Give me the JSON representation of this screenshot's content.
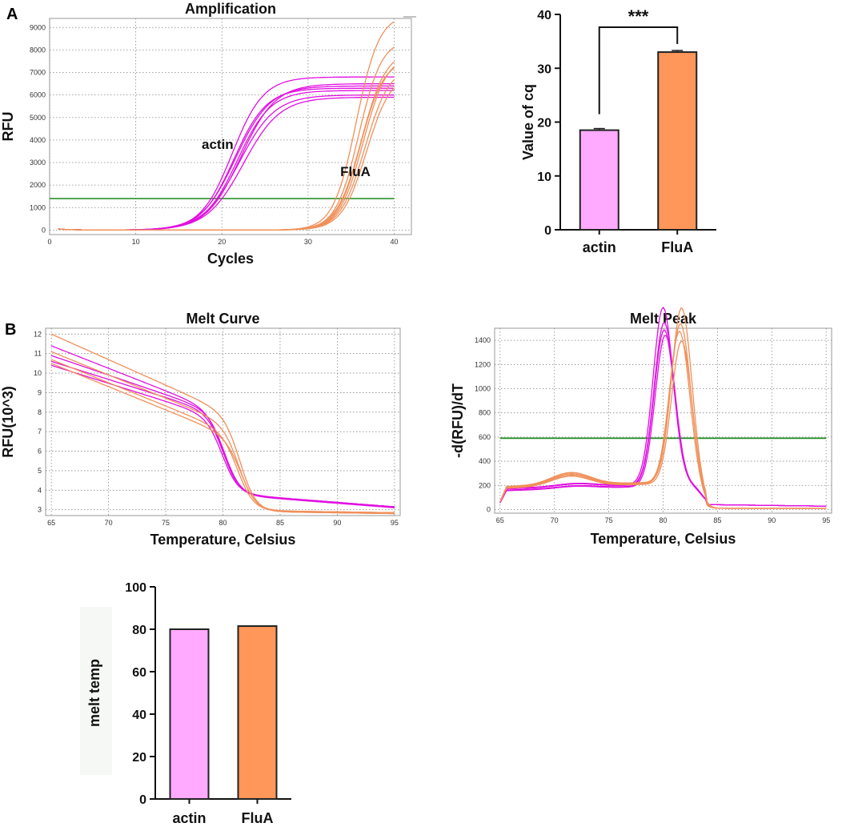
{
  "colors": {
    "actin": "#e010e0",
    "flua": "#f0905a",
    "threshold": "#1a8a1a",
    "bar_actin": "#ffaaff",
    "bar_flua": "#ff965a",
    "grid": "#888888"
  },
  "panels": {
    "a": "A",
    "b": "B"
  },
  "chart_data": [
    {
      "id": "amplification",
      "type": "line",
      "title": "Amplification",
      "xlabel": "Cycles",
      "ylabel": "RFU",
      "xlim": [
        0,
        42
      ],
      "ylim": [
        -200,
        9400
      ],
      "xticks": [
        0,
        10,
        20,
        30,
        40
      ],
      "yticks": [
        0,
        1000,
        2000,
        3000,
        4000,
        5000,
        6000,
        7000,
        8000,
        9000
      ],
      "grid": true,
      "threshold": 1400,
      "annotations": [
        {
          "text": "actin",
          "x": 19.5,
          "y": 3600
        },
        {
          "text": "FluA",
          "x": 35.5,
          "y": 2400
        }
      ],
      "series": [
        {
          "name": "actin",
          "color_key": "actin",
          "curves": [
            {
              "cq": 18.0,
              "plateau": 6800,
              "slope": 0.55
            },
            {
              "cq": 18.4,
              "plateau": 6400,
              "slope": 0.5
            },
            {
              "cq": 18.6,
              "plateau": 6200,
              "slope": 0.52
            },
            {
              "cq": 18.8,
              "plateau": 6000,
              "slope": 0.48
            },
            {
              "cq": 19.0,
              "plateau": 6500,
              "slope": 0.5
            },
            {
              "cq": 19.3,
              "plateau": 5900,
              "slope": 0.47
            },
            {
              "cq": 18.2,
              "plateau": 6300,
              "slope": 0.53
            }
          ]
        },
        {
          "name": "FluA",
          "color_key": "flua",
          "curves": [
            {
              "cq": 32.4,
              "plateau": 9600,
              "slope": 0.75
            },
            {
              "cq": 32.7,
              "plateau": 8500,
              "slope": 0.75
            },
            {
              "cq": 33.0,
              "plateau": 8000,
              "slope": 0.7
            },
            {
              "cq": 33.2,
              "plateau": 7800,
              "slope": 0.72
            },
            {
              "cq": 33.4,
              "plateau": 7300,
              "slope": 0.7
            },
            {
              "cq": 32.9,
              "plateau": 7600,
              "slope": 0.74
            },
            {
              "cq": 33.6,
              "plateau": 7000,
              "slope": 0.7
            }
          ]
        }
      ]
    },
    {
      "id": "cq",
      "type": "bar",
      "title": "",
      "categories": [
        "actin",
        "FluA"
      ],
      "values": [
        18.5,
        33.0
      ],
      "errors": [
        0.3,
        0.3
      ],
      "ylabel": "Value of cq",
      "ylim": [
        0,
        40
      ],
      "yticks": [
        0,
        10,
        20,
        30,
        40
      ],
      "annotation": "***",
      "color_keys": [
        "bar_actin",
        "bar_flua"
      ]
    },
    {
      "id": "melt-curve",
      "type": "line",
      "title": "Melt Curve",
      "xlabel": "Temperature, Celsius",
      "ylabel": "RFU(10^3)",
      "xlim": [
        64.5,
        95.5
      ],
      "ylim": [
        2.7,
        12.3
      ],
      "xticks": [
        65,
        70,
        75,
        80,
        85,
        90,
        95
      ],
      "yticks": [
        3,
        4,
        5,
        6,
        7,
        8,
        9,
        10,
        11,
        12
      ],
      "grid": true,
      "series": [
        {
          "name": "actin",
          "color_key": "actin",
          "curves": [
            {
              "a": 10.4,
              "b": 8.0,
              "tm": 80.0,
              "plateau": 3.7,
              "end": 3.15
            },
            {
              "a": 10.6,
              "b": 8.2,
              "tm": 80.1,
              "plateau": 3.7,
              "end": 3.15
            },
            {
              "a": 10.9,
              "b": 8.3,
              "tm": 80.2,
              "plateau": 3.65,
              "end": 3.1
            },
            {
              "a": 11.4,
              "b": 8.4,
              "tm": 80.1,
              "plateau": 3.65,
              "end": 3.15
            }
          ]
        },
        {
          "name": "FluA",
          "color_key": "flua",
          "curves": [
            {
              "a": 12.0,
              "b": 8.6,
              "tm": 81.6,
              "plateau": 2.9,
              "end": 2.8
            },
            {
              "a": 11.1,
              "b": 8.0,
              "tm": 81.5,
              "plateau": 2.95,
              "end": 2.85
            },
            {
              "a": 10.7,
              "b": 7.6,
              "tm": 81.4,
              "plateau": 2.95,
              "end": 2.85
            },
            {
              "a": 10.5,
              "b": 7.4,
              "tm": 81.7,
              "plateau": 2.9,
              "end": 2.8
            }
          ]
        }
      ]
    },
    {
      "id": "melt-peak",
      "type": "line",
      "title": "Melt Peak",
      "xlabel": "Temperature, Celsius",
      "ylabel": "-d(RFU)/dT",
      "xlim": [
        64.5,
        95.5
      ],
      "ylim": [
        -30,
        1500
      ],
      "xticks": [
        65,
        70,
        75,
        80,
        85,
        90,
        95
      ],
      "yticks": [
        0,
        200,
        400,
        600,
        800,
        1000,
        1200,
        1400
      ],
      "grid": true,
      "threshold": 590,
      "series": [
        {
          "name": "actin",
          "color_key": "actin",
          "curves": [
            {
              "peak": 1290,
              "tm": 80.1,
              "base": 160,
              "bump": 20,
              "bumpx": 72
            },
            {
              "peak": 1340,
              "tm": 80.1,
              "base": 170,
              "bump": 25,
              "bumpx": 72
            },
            {
              "peak": 1460,
              "tm": 80.0,
              "base": 175,
              "bump": 25,
              "bumpx": 72
            },
            {
              "peak": 1250,
              "tm": 80.2,
              "base": 155,
              "bump": 20,
              "bumpx": 72
            }
          ]
        },
        {
          "name": "FluA",
          "color_key": "flua",
          "curves": [
            {
              "peak": 1440,
              "tm": 81.7,
              "base": 190,
              "bump": 100,
              "bumpx": 71.5
            },
            {
              "peak": 1320,
              "tm": 81.6,
              "base": 180,
              "bump": 90,
              "bumpx": 71.5
            },
            {
              "peak": 1250,
              "tm": 81.5,
              "base": 185,
              "bump": 95,
              "bumpx": 71.5
            },
            {
              "peak": 1180,
              "tm": 81.7,
              "base": 175,
              "bump": 85,
              "bumpx": 71.5
            }
          ]
        }
      ]
    },
    {
      "id": "melt-temp",
      "type": "bar",
      "title": "",
      "categories": [
        "actin",
        "FluA"
      ],
      "values": [
        80.0,
        81.5
      ],
      "ylabel": "melt temp",
      "ylim": [
        0,
        100
      ],
      "yticks": [
        0,
        20,
        40,
        60,
        80,
        100
      ],
      "color_keys": [
        "bar_actin",
        "bar_flua"
      ]
    }
  ]
}
